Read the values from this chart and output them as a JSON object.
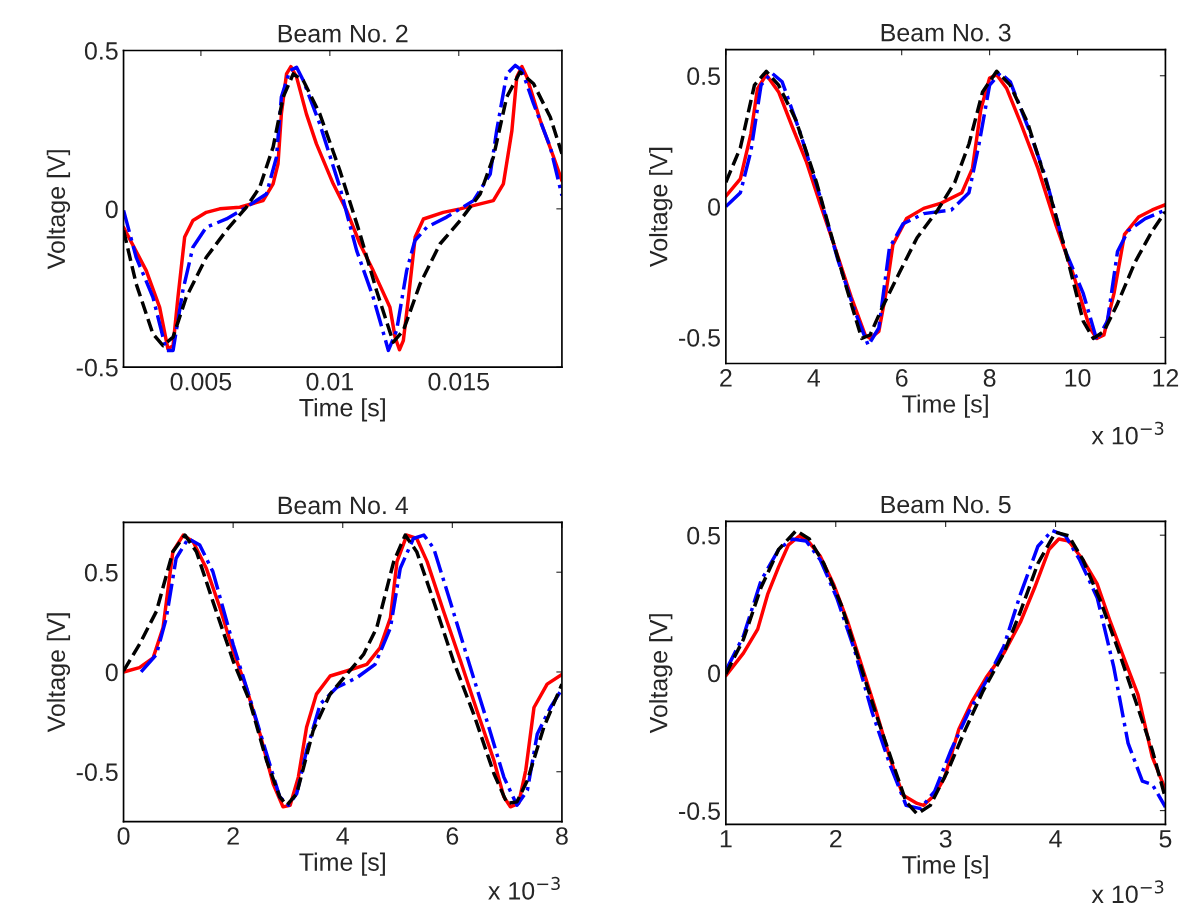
{
  "chart_data": [
    {
      "type": "line",
      "title": "Beam No. 2",
      "xlabel": "Time [s]",
      "ylabel": "Voltage [V]",
      "xlim": [
        0.002,
        0.019
      ],
      "ylim": [
        -0.5,
        0.5
      ],
      "xticks": [
        0.005,
        0.01,
        0.015
      ],
      "yticks": [
        -0.5,
        0,
        0.5
      ],
      "series": [
        {
          "color": "#ff0000",
          "line_style": "solid",
          "x": [
            0.002,
            0.00288,
            0.0034,
            0.00372,
            0.00392,
            0.00411,
            0.00437,
            0.00469,
            0.00521,
            0.00573,
            0.00651,
            0.00741,
            0.0078,
            0.00799,
            0.00812,
            0.00832,
            0.00849,
            0.00871,
            0.00909,
            0.00948,
            0.01013,
            0.01065,
            0.01117,
            0.01168,
            0.01233,
            0.01253,
            0.0127,
            0.01285,
            0.01305,
            0.01331,
            0.01363,
            0.0144,
            0.01505,
            0.01634,
            0.01673,
            0.01706,
            0.01725,
            0.01745,
            0.01764,
            0.01816,
            0.01868,
            0.019
          ],
          "values": [
            -0.058,
            -0.195,
            -0.311,
            -0.442,
            -0.432,
            -0.279,
            -0.089,
            -0.037,
            -0.011,
            0,
            0.005,
            0.026,
            0.079,
            0.142,
            0.3,
            0.426,
            0.449,
            0.416,
            0.3,
            0.205,
            0.079,
            -0.005,
            -0.111,
            -0.195,
            -0.311,
            -0.405,
            -0.445,
            -0.416,
            -0.279,
            -0.089,
            -0.032,
            -0.011,
            0,
            0.026,
            0.079,
            0.247,
            0.416,
            0.449,
            0.416,
            0.279,
            0.163,
            0.089
          ]
        },
        {
          "color": "#0000ff",
          "line_style": "dashdot",
          "x": [
            0.002,
            0.00249,
            0.00314,
            0.00366,
            0.00392,
            0.0043,
            0.00469,
            0.00521,
            0.00599,
            0.00676,
            0.00754,
            0.00793,
            0.00812,
            0.00845,
            0.00871,
            0.00897,
            0.00961,
            0.01039,
            0.01104,
            0.01168,
            0.01227,
            0.01259,
            0.01298,
            0.0133,
            0.01376,
            0.01453,
            0.01557,
            0.01622,
            0.01647,
            0.01686,
            0.01719,
            0.01745,
            0.0179,
            0.01855,
            0.019
          ],
          "values": [
            -0.005,
            -0.153,
            -0.279,
            -0.447,
            -0.447,
            -0.258,
            -0.121,
            -0.058,
            -0.032,
            0.005,
            0.047,
            0.163,
            0.353,
            0.437,
            0.447,
            0.405,
            0.268,
            0.068,
            -0.132,
            -0.279,
            -0.447,
            -0.384,
            -0.195,
            -0.1,
            -0.058,
            -0.026,
            0.026,
            0.11,
            0.247,
            0.426,
            0.453,
            0.437,
            0.332,
            0.195,
            0.042
          ]
        },
        {
          "color": "#000000",
          "line_style": "dashed",
          "x": [
            0.002,
            0.00249,
            0.00314,
            0.00353,
            0.00392,
            0.00443,
            0.00521,
            0.00599,
            0.00676,
            0.00728,
            0.0078,
            0.00819,
            0.00858,
            0.00897,
            0.00961,
            0.01039,
            0.01117,
            0.01181,
            0.01246,
            0.01285,
            0.0135,
            0.01427,
            0.01505,
            0.01583,
            0.01634,
            0.01686,
            0.01738,
            0.0179,
            0.01855,
            0.019
          ],
          "values": [
            -0.068,
            -0.237,
            -0.395,
            -0.432,
            -0.405,
            -0.279,
            -0.153,
            -0.068,
            0.005,
            0.068,
            0.195,
            0.353,
            0.426,
            0.405,
            0.3,
            0.121,
            -0.079,
            -0.258,
            -0.421,
            -0.384,
            -0.237,
            -0.111,
            -0.037,
            0.047,
            0.163,
            0.353,
            0.432,
            0.395,
            0.289,
            0.174
          ]
        }
      ]
    },
    {
      "type": "line",
      "title": "Beam No. 3",
      "xlabel": "Time [s]",
      "ylabel": "Voltage [V]",
      "xlim": [
        2,
        12
      ],
      "ylim": [
        -0.6,
        0.6
      ],
      "xticks": [
        2,
        4,
        6,
        8,
        10,
        12
      ],
      "yticks": [
        -0.5,
        0,
        0.5
      ],
      "annotations": [
        "x 10$^{−3}$"
      ],
      "series": [
        {
          "color": "#ff0000",
          "line_style": "solid",
          "x": [
            2.0,
            2.33,
            2.57,
            2.72,
            2.92,
            3.2,
            3.51,
            3.83,
            4.14,
            4.46,
            4.85,
            5.17,
            5.28,
            5.48,
            5.64,
            5.8,
            6.11,
            6.5,
            6.9,
            7.37,
            7.61,
            7.8,
            8.0,
            8.16,
            8.39,
            8.71,
            9.1,
            9.5,
            9.89,
            10.28,
            10.44,
            10.6,
            10.83,
            11.07,
            11.39,
            11.7,
            12.0
          ],
          "values": [
            0.04,
            0.106,
            0.279,
            0.451,
            0.504,
            0.438,
            0.305,
            0.172,
            0.013,
            -0.146,
            -0.345,
            -0.491,
            -0.504,
            -0.477,
            -0.332,
            -0.146,
            -0.046,
            -0.007,
            0.013,
            0.053,
            0.146,
            0.371,
            0.491,
            0.504,
            0.451,
            0.318,
            0.146,
            -0.066,
            -0.252,
            -0.464,
            -0.504,
            -0.491,
            -0.332,
            -0.106,
            -0.04,
            -0.013,
            0.007
          ]
        },
        {
          "color": "#0000ff",
          "line_style": "dashdot",
          "x": [
            2.0,
            2.33,
            2.57,
            2.8,
            3.04,
            3.28,
            3.67,
            4.14,
            4.54,
            4.93,
            5.24,
            5.48,
            5.72,
            6.03,
            6.5,
            7.13,
            7.53,
            7.76,
            8.0,
            8.24,
            8.47,
            8.87,
            9.26,
            9.73,
            10.13,
            10.44,
            10.68,
            10.91,
            11.15,
            11.54,
            12.0
          ],
          "values": [
            0,
            0.053,
            0.212,
            0.464,
            0.511,
            0.477,
            0.292,
            0.04,
            -0.199,
            -0.398,
            -0.531,
            -0.464,
            -0.159,
            -0.066,
            -0.027,
            -0.013,
            0.053,
            0.239,
            0.464,
            0.511,
            0.477,
            0.305,
            0.119,
            -0.172,
            -0.332,
            -0.511,
            -0.438,
            -0.172,
            -0.093,
            -0.046,
            -0.013
          ]
        },
        {
          "color": "#000000",
          "line_style": "dashed",
          "x": [
            2.0,
            2.33,
            2.65,
            2.92,
            3.2,
            3.59,
            4.06,
            4.46,
            4.85,
            5.09,
            5.28,
            5.56,
            5.95,
            6.35,
            6.82,
            7.21,
            7.53,
            7.84,
            8.16,
            8.47,
            8.87,
            9.34,
            9.73,
            10.13,
            10.36,
            10.6,
            10.91,
            11.31,
            11.7,
            12.0
          ],
          "values": [
            0.093,
            0.225,
            0.464,
            0.517,
            0.464,
            0.332,
            0.093,
            -0.146,
            -0.371,
            -0.504,
            -0.491,
            -0.385,
            -0.252,
            -0.119,
            -0.013,
            0.093,
            0.239,
            0.438,
            0.517,
            0.464,
            0.318,
            0.066,
            -0.172,
            -0.438,
            -0.504,
            -0.477,
            -0.371,
            -0.212,
            -0.093,
            -0.02
          ]
        }
      ]
    },
    {
      "type": "line",
      "title": "Beam No. 4",
      "xlabel": "Time [s]",
      "ylabel": "Voltage [V]",
      "xlim": [
        0,
        8
      ],
      "ylim": [
        -0.75,
        0.75
      ],
      "xticks": [
        0,
        2,
        4,
        6,
        8
      ],
      "yticks": [
        -0.5,
        0,
        0.5
      ],
      "annotations": [
        "x 10$^{−3}$"
      ],
      "series": [
        {
          "color": "#ff0000",
          "line_style": "solid",
          "x": [
            0,
            0.29,
            0.54,
            0.72,
            0.9,
            1.09,
            1.27,
            1.51,
            1.76,
            2.0,
            2.24,
            2.49,
            2.73,
            2.91,
            3.04,
            3.19,
            3.34,
            3.52,
            3.77,
            4.07,
            4.44,
            4.68,
            4.87,
            4.99,
            5.17,
            5.35,
            5.54,
            5.84,
            6.15,
            6.45,
            6.76,
            6.94,
            7.06,
            7.21,
            7.34,
            7.49,
            7.73,
            8.0
          ],
          "values": [
            0,
            0.022,
            0.071,
            0.221,
            0.603,
            0.686,
            0.653,
            0.52,
            0.321,
            0.105,
            -0.078,
            -0.311,
            -0.56,
            -0.676,
            -0.668,
            -0.527,
            -0.277,
            -0.111,
            -0.02,
            0.005,
            0.038,
            0.121,
            0.271,
            0.553,
            0.686,
            0.669,
            0.553,
            0.304,
            0.055,
            -0.194,
            -0.444,
            -0.626,
            -0.676,
            -0.659,
            -0.493,
            -0.178,
            -0.061,
            -0.012
          ]
        },
        {
          "color": "#0000ff",
          "line_style": "dashdot",
          "x": [
            0.32,
            0.6,
            0.78,
            0.96,
            1.18,
            1.39,
            1.63,
            2.0,
            2.3,
            2.61,
            2.85,
            3.01,
            3.16,
            3.34,
            3.59,
            3.89,
            4.26,
            4.59,
            4.87,
            5.05,
            5.29,
            5.48,
            5.66,
            5.96,
            6.33,
            6.63,
            6.94,
            7.18,
            7.37,
            7.55,
            7.79,
            8.0
          ],
          "values": [
            0,
            0.088,
            0.271,
            0.57,
            0.669,
            0.636,
            0.503,
            0.138,
            -0.128,
            -0.41,
            -0.626,
            -0.668,
            -0.61,
            -0.394,
            -0.161,
            -0.078,
            -0.028,
            0.038,
            0.221,
            0.52,
            0.669,
            0.686,
            0.62,
            0.354,
            0.022,
            -0.244,
            -0.527,
            -0.668,
            -0.593,
            -0.311,
            -0.178,
            -0.086
          ]
        },
        {
          "color": "#000000",
          "line_style": "dashed",
          "x": [
            0,
            0.29,
            0.6,
            0.9,
            1.12,
            1.33,
            1.63,
            2.0,
            2.3,
            2.61,
            2.85,
            2.98,
            3.16,
            3.46,
            3.77,
            4.07,
            4.38,
            4.62,
            4.93,
            5.14,
            5.35,
            5.66,
            6.02,
            6.39,
            6.76,
            7.0,
            7.18,
            7.37,
            7.67,
            8.0
          ],
          "values": [
            0.005,
            0.138,
            0.304,
            0.603,
            0.686,
            0.603,
            0.354,
            0.055,
            -0.145,
            -0.444,
            -0.626,
            -0.668,
            -0.61,
            -0.294,
            -0.111,
            -0.012,
            0.088,
            0.221,
            0.553,
            0.686,
            0.603,
            0.354,
            0.055,
            -0.211,
            -0.51,
            -0.659,
            -0.651,
            -0.543,
            -0.277,
            -0.061
          ]
        }
      ]
    },
    {
      "type": "line",
      "title": "Beam No. 5",
      "xlabel": "Time [s]",
      "ylabel": "Voltage [V]",
      "xlim": [
        1,
        5
      ],
      "ylim": [
        -0.55,
        0.55
      ],
      "xticks": [
        1,
        2,
        3,
        4,
        5
      ],
      "yticks": [
        -0.5,
        0,
        0.5
      ],
      "annotations": [
        "x 10$^{−3}$"
      ],
      "series": [
        {
          "color": "#ff0000",
          "line_style": "solid",
          "x": [
            1.0,
            1.16,
            1.29,
            1.38,
            1.48,
            1.57,
            1.67,
            1.76,
            1.86,
            1.98,
            2.11,
            2.23,
            2.36,
            2.49,
            2.61,
            2.74,
            2.8,
            2.9,
            2.99,
            3.12,
            3.24,
            3.37,
            3.53,
            3.68,
            3.81,
            3.94,
            4.03,
            4.12,
            4.25,
            4.38,
            4.5,
            4.63,
            4.75,
            4.88,
            5.0
          ],
          "values": [
            -0.01,
            0.072,
            0.159,
            0.285,
            0.385,
            0.465,
            0.498,
            0.473,
            0.423,
            0.322,
            0.184,
            0.034,
            -0.129,
            -0.305,
            -0.443,
            -0.474,
            -0.481,
            -0.443,
            -0.38,
            -0.205,
            -0.104,
            -0.016,
            0.072,
            0.184,
            0.31,
            0.448,
            0.486,
            0.479,
            0.41,
            0.322,
            0.184,
            0.046,
            -0.079,
            -0.305,
            -0.424
          ]
        },
        {
          "color": "#0000ff",
          "line_style": "dashdot",
          "x": [
            1.0,
            1.16,
            1.32,
            1.48,
            1.6,
            1.73,
            1.86,
            2.01,
            2.17,
            2.33,
            2.49,
            2.64,
            2.77,
            2.9,
            3.05,
            3.21,
            3.37,
            3.53,
            3.68,
            3.84,
            3.97,
            4.09,
            4.22,
            4.38,
            4.53,
            4.66,
            4.79,
            4.88,
            5.0
          ],
          "values": [
            0.009,
            0.134,
            0.335,
            0.448,
            0.486,
            0.479,
            0.41,
            0.272,
            0.084,
            -0.142,
            -0.33,
            -0.481,
            -0.493,
            -0.43,
            -0.28,
            -0.142,
            -0.029,
            0.097,
            0.285,
            0.46,
            0.517,
            0.498,
            0.41,
            0.272,
            0.021,
            -0.255,
            -0.393,
            -0.405,
            -0.487
          ]
        },
        {
          "color": "#000000",
          "line_style": "dashed",
          "x": [
            1.0,
            1.16,
            1.32,
            1.48,
            1.64,
            1.76,
            1.89,
            2.05,
            2.2,
            2.36,
            2.52,
            2.64,
            2.74,
            2.86,
            3.02,
            3.18,
            3.34,
            3.53,
            3.68,
            3.84,
            4.0,
            4.12,
            4.25,
            4.41,
            4.57,
            4.72,
            4.88,
            5.0
          ],
          "values": [
            -0.004,
            0.122,
            0.31,
            0.448,
            0.517,
            0.486,
            0.398,
            0.247,
            0.059,
            -0.142,
            -0.33,
            -0.468,
            -0.512,
            -0.481,
            -0.355,
            -0.205,
            -0.066,
            0.072,
            0.222,
            0.398,
            0.511,
            0.498,
            0.41,
            0.26,
            0.084,
            -0.092,
            -0.28,
            -0.455
          ]
        }
      ]
    }
  ]
}
